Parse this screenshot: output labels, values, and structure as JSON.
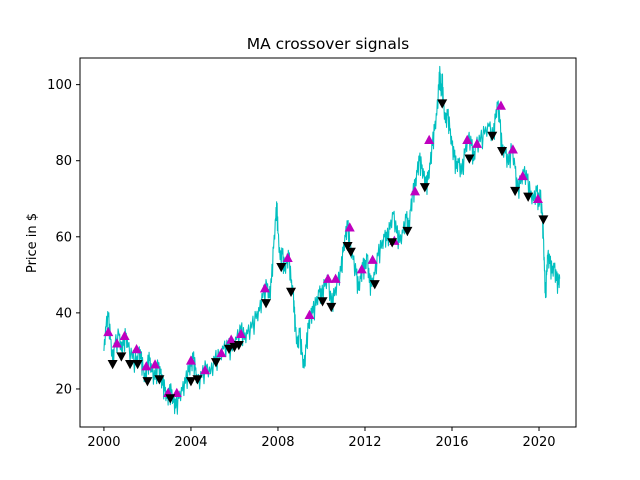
{
  "chart_data": {
    "type": "line",
    "title": "MA crossover signals",
    "xlabel": "",
    "ylabel": "Price in $",
    "xlim": [
      1998.9,
      2021.7
    ],
    "ylim": [
      10.0,
      107.0
    ],
    "xticks": [
      2000,
      2004,
      2008,
      2012,
      2016,
      2020
    ],
    "yticks": [
      20,
      40,
      60,
      80,
      100
    ],
    "grid": false,
    "colors": {
      "price": "#00bfbf",
      "buy": "#bf00bf",
      "sell": "#000000"
    },
    "series": [
      {
        "role": "price",
        "points": [
          [
            2000.0,
            30.0
          ],
          [
            2000.1,
            36.5
          ],
          [
            2000.2,
            39.0
          ],
          [
            2000.3,
            33.0
          ],
          [
            2000.4,
            27.5
          ],
          [
            2000.5,
            31.0
          ],
          [
            2000.7,
            34.0
          ],
          [
            2000.8,
            30.0
          ],
          [
            2000.9,
            31.5
          ],
          [
            2001.0,
            34.0
          ],
          [
            2001.1,
            31.0
          ],
          [
            2001.3,
            28.0
          ],
          [
            2001.5,
            26.5
          ],
          [
            2001.6,
            29.5
          ],
          [
            2001.7,
            28.0
          ],
          [
            2001.8,
            25.0
          ],
          [
            2001.9,
            22.0
          ],
          [
            2002.0,
            26.0
          ],
          [
            2002.1,
            27.5
          ],
          [
            2002.2,
            24.5
          ],
          [
            2002.35,
            22.5
          ],
          [
            2002.5,
            26.0
          ],
          [
            2002.6,
            24.0
          ],
          [
            2002.7,
            21.0
          ],
          [
            2002.8,
            19.5
          ],
          [
            2002.9,
            17.5
          ],
          [
            2003.0,
            18.5
          ],
          [
            2003.1,
            19.0
          ],
          [
            2003.2,
            16.5
          ],
          [
            2003.3,
            15.0
          ],
          [
            2003.45,
            17.5
          ],
          [
            2003.6,
            19.5
          ],
          [
            2003.75,
            21.5
          ],
          [
            2003.9,
            24.5
          ],
          [
            2004.0,
            26.0
          ],
          [
            2004.1,
            28.0
          ],
          [
            2004.2,
            25.0
          ],
          [
            2004.3,
            21.5
          ],
          [
            2004.5,
            23.0
          ],
          [
            2004.7,
            25.5
          ],
          [
            2004.9,
            24.0
          ],
          [
            2005.1,
            27.5
          ],
          [
            2005.3,
            28.0
          ],
          [
            2005.5,
            30.5
          ],
          [
            2005.7,
            31.0
          ],
          [
            2005.9,
            30.0
          ],
          [
            2006.1,
            33.0
          ],
          [
            2006.3,
            35.5
          ],
          [
            2006.45,
            33.0
          ],
          [
            2006.6,
            34.5
          ],
          [
            2006.8,
            36.0
          ],
          [
            2007.0,
            38.5
          ],
          [
            2007.15,
            40.5
          ],
          [
            2007.3,
            44.0
          ],
          [
            2007.5,
            47.0
          ],
          [
            2007.6,
            44.0
          ],
          [
            2007.7,
            48.0
          ],
          [
            2007.8,
            57.0
          ],
          [
            2007.9,
            65.0
          ],
          [
            2007.95,
            68.0
          ],
          [
            2008.0,
            61.0
          ],
          [
            2008.1,
            54.0
          ],
          [
            2008.2,
            55.5
          ],
          [
            2008.3,
            51.0
          ],
          [
            2008.4,
            53.0
          ],
          [
            2008.5,
            55.0
          ],
          [
            2008.6,
            48.0
          ],
          [
            2008.7,
            45.0
          ],
          [
            2008.75,
            40.0
          ],
          [
            2008.8,
            36.0
          ],
          [
            2008.9,
            31.0
          ],
          [
            2009.0,
            35.0
          ],
          [
            2009.1,
            29.0
          ],
          [
            2009.2,
            25.5
          ],
          [
            2009.3,
            31.0
          ],
          [
            2009.4,
            36.0
          ],
          [
            2009.5,
            39.0
          ],
          [
            2009.6,
            40.0
          ],
          [
            2009.75,
            42.0
          ],
          [
            2009.9,
            45.5
          ],
          [
            2010.0,
            44.0
          ],
          [
            2010.15,
            47.0
          ],
          [
            2010.3,
            49.0
          ],
          [
            2010.45,
            42.0
          ],
          [
            2010.6,
            44.5
          ],
          [
            2010.75,
            48.0
          ],
          [
            2010.9,
            51.0
          ],
          [
            2011.0,
            56.0
          ],
          [
            2011.1,
            60.0
          ],
          [
            2011.2,
            63.0
          ],
          [
            2011.3,
            58.0
          ],
          [
            2011.45,
            54.0
          ],
          [
            2011.6,
            50.0
          ],
          [
            2011.7,
            46.0
          ],
          [
            2011.8,
            49.0
          ],
          [
            2011.9,
            52.0
          ],
          [
            2012.0,
            51.5
          ],
          [
            2012.1,
            55.0
          ],
          [
            2012.2,
            48.0
          ],
          [
            2012.3,
            47.0
          ],
          [
            2012.45,
            50.0
          ],
          [
            2012.6,
            55.0
          ],
          [
            2012.75,
            57.0
          ],
          [
            2012.9,
            60.0
          ],
          [
            2013.0,
            59.0
          ],
          [
            2013.15,
            62.0
          ],
          [
            2013.3,
            66.0
          ],
          [
            2013.45,
            61.0
          ],
          [
            2013.6,
            58.5
          ],
          [
            2013.75,
            61.0
          ],
          [
            2013.9,
            65.0
          ],
          [
            2014.0,
            61.5
          ],
          [
            2014.1,
            67.0
          ],
          [
            2014.2,
            71.0
          ],
          [
            2014.3,
            73.0
          ],
          [
            2014.4,
            77.0
          ],
          [
            2014.5,
            80.0
          ],
          [
            2014.6,
            78.0
          ],
          [
            2014.7,
            76.0
          ],
          [
            2014.8,
            73.0
          ],
          [
            2014.9,
            75.0
          ],
          [
            2015.0,
            79.0
          ],
          [
            2015.1,
            84.0
          ],
          [
            2015.2,
            88.0
          ],
          [
            2015.3,
            92.0
          ],
          [
            2015.4,
            100.0
          ],
          [
            2015.45,
            103.0
          ],
          [
            2015.5,
            97.0
          ],
          [
            2015.55,
            102.0
          ],
          [
            2015.6,
            95.0
          ],
          [
            2015.7,
            90.0
          ],
          [
            2015.8,
            92.0
          ],
          [
            2015.9,
            88.0
          ],
          [
            2016.0,
            84.0
          ],
          [
            2016.1,
            81.0
          ],
          [
            2016.2,
            78.0
          ],
          [
            2016.3,
            79.5
          ],
          [
            2016.45,
            76.5
          ],
          [
            2016.6,
            82.0
          ],
          [
            2016.75,
            86.0
          ],
          [
            2016.9,
            84.0
          ],
          [
            2017.0,
            80.0
          ],
          [
            2017.1,
            84.0
          ],
          [
            2017.3,
            85.0
          ],
          [
            2017.5,
            87.0
          ],
          [
            2017.7,
            89.0
          ],
          [
            2017.9,
            86.0
          ],
          [
            2018.0,
            91.0
          ],
          [
            2018.1,
            95.0
          ],
          [
            2018.2,
            90.0
          ],
          [
            2018.3,
            83.0
          ],
          [
            2018.45,
            82.0
          ],
          [
            2018.6,
            79.0
          ],
          [
            2018.75,
            83.0
          ],
          [
            2018.9,
            78.0
          ],
          [
            2019.0,
            72.0
          ],
          [
            2019.15,
            74.0
          ],
          [
            2019.3,
            77.0
          ],
          [
            2019.45,
            75.0
          ],
          [
            2019.6,
            71.0
          ],
          [
            2019.75,
            69.5
          ],
          [
            2019.9,
            72.0
          ],
          [
            2020.0,
            68.0
          ],
          [
            2020.05,
            72.0
          ],
          [
            2020.15,
            65.0
          ],
          [
            2020.2,
            60.0
          ],
          [
            2020.25,
            51.0
          ],
          [
            2020.3,
            44.0
          ],
          [
            2020.35,
            50.0
          ],
          [
            2020.4,
            55.0
          ],
          [
            2020.5,
            53.0
          ],
          [
            2020.6,
            50.5
          ],
          [
            2020.7,
            52.0
          ],
          [
            2020.8,
            48.5
          ],
          [
            2020.9,
            47.5
          ],
          [
            2020.95,
            49.0
          ]
        ]
      },
      {
        "name": "buy",
        "role": "buy",
        "marker": "triangle-up",
        "points": [
          [
            2000.2,
            35.0
          ],
          [
            2000.6,
            32.0
          ],
          [
            2000.95,
            34.0
          ],
          [
            2001.5,
            30.5
          ],
          [
            2001.95,
            26.0
          ],
          [
            2002.35,
            26.5
          ],
          [
            2002.95,
            19.0
          ],
          [
            2003.35,
            19.0
          ],
          [
            2004.0,
            27.5
          ],
          [
            2004.65,
            25.0
          ],
          [
            2005.4,
            29.5
          ],
          [
            2005.85,
            33.0
          ],
          [
            2006.3,
            34.5
          ],
          [
            2007.4,
            46.5
          ],
          [
            2008.45,
            54.5
          ],
          [
            2009.45,
            39.5
          ],
          [
            2010.3,
            49.0
          ],
          [
            2010.65,
            49.0
          ],
          [
            2011.3,
            62.5
          ],
          [
            2011.85,
            51.5
          ],
          [
            2012.35,
            54.0
          ],
          [
            2013.35,
            59.0
          ],
          [
            2014.3,
            72.0
          ],
          [
            2014.95,
            85.5
          ],
          [
            2016.7,
            85.5
          ],
          [
            2017.15,
            84.5
          ],
          [
            2018.25,
            94.5
          ],
          [
            2018.8,
            83.0
          ],
          [
            2019.25,
            76.0
          ],
          [
            2019.95,
            70.0
          ]
        ]
      },
      {
        "name": "sell",
        "role": "sell",
        "marker": "triangle-down",
        "points": [
          [
            2000.4,
            26.5
          ],
          [
            2000.8,
            28.5
          ],
          [
            2001.2,
            26.5
          ],
          [
            2001.55,
            26.5
          ],
          [
            2002.0,
            22.0
          ],
          [
            2002.55,
            22.5
          ],
          [
            2003.05,
            17.5
          ],
          [
            2004.0,
            22.0
          ],
          [
            2004.3,
            22.5
          ],
          [
            2005.15,
            27.0
          ],
          [
            2005.75,
            30.5
          ],
          [
            2006.0,
            31.0
          ],
          [
            2006.2,
            31.5
          ],
          [
            2007.45,
            42.5
          ],
          [
            2008.15,
            52.0
          ],
          [
            2008.6,
            45.5
          ],
          [
            2010.05,
            43.0
          ],
          [
            2010.45,
            41.5
          ],
          [
            2011.2,
            57.5
          ],
          [
            2011.35,
            56.0
          ],
          [
            2012.45,
            47.5
          ],
          [
            2013.25,
            58.5
          ],
          [
            2013.95,
            61.5
          ],
          [
            2014.75,
            73.0
          ],
          [
            2015.55,
            95.0
          ],
          [
            2016.8,
            80.5
          ],
          [
            2017.85,
            86.5
          ],
          [
            2018.3,
            82.5
          ],
          [
            2018.9,
            72.0
          ],
          [
            2019.5,
            70.5
          ],
          [
            2020.2,
            64.5
          ]
        ]
      }
    ]
  }
}
